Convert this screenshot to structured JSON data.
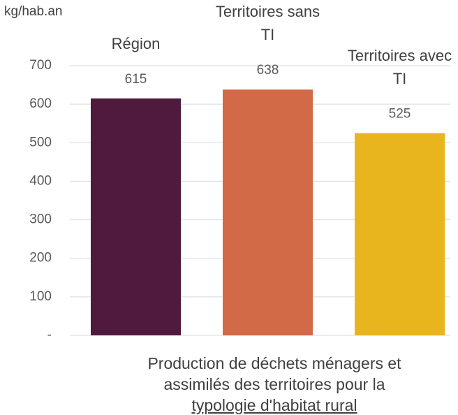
{
  "chart_data": {
    "type": "bar",
    "y_label": "kg/hab.an",
    "categories": [
      "Région",
      "Territoires sans TI",
      "Territoires avec TI"
    ],
    "values": [
      615,
      638,
      525
    ],
    "colors": [
      "#4f1a3d",
      "#d36a47",
      "#e8b51e"
    ],
    "ylim": [
      0,
      700
    ],
    "yticks": [
      {
        "value": 0,
        "label": "-"
      },
      100,
      200,
      300,
      400,
      500,
      600,
      700
    ],
    "grid": true,
    "caption": [
      "Production de déchets ménagers et",
      "assimilés des territoires pour la",
      "typologie d'habitat rural"
    ]
  }
}
